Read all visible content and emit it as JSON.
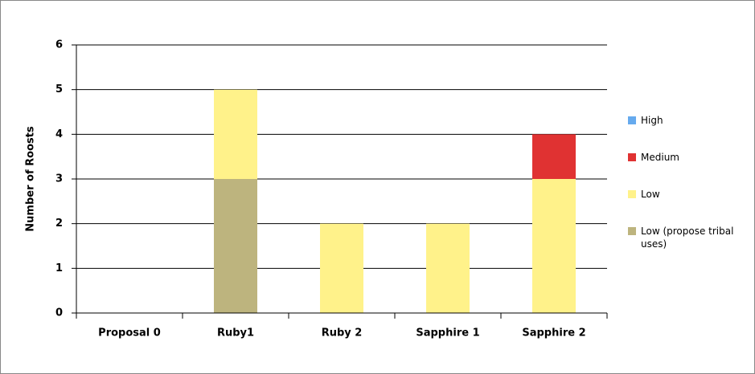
{
  "chart_data": {
    "type": "stacked_bar",
    "y_label": "Number of Roosts",
    "categories": [
      "Proposal 0",
      "Ruby1",
      "Ruby 2",
      "Sapphire 1",
      "Sapphire 2"
    ],
    "series": [
      {
        "name": "Low (propose tribal uses)",
        "color": "#bdb47e",
        "values": [
          0,
          3,
          0,
          0,
          0
        ]
      },
      {
        "name": "Low",
        "color": "#fff28a",
        "values": [
          0,
          2,
          2,
          2,
          3
        ]
      },
      {
        "name": "Medium",
        "color": "#e03232",
        "values": [
          0,
          0,
          0,
          0,
          1
        ]
      },
      {
        "name": "High",
        "color": "#66aaee",
        "values": [
          0,
          0,
          0,
          0,
          0
        ]
      }
    ],
    "ylim": [
      0,
      6
    ],
    "yticks": [
      0,
      1,
      2,
      3,
      4,
      5,
      6
    ],
    "grid": true,
    "legend": "right"
  }
}
